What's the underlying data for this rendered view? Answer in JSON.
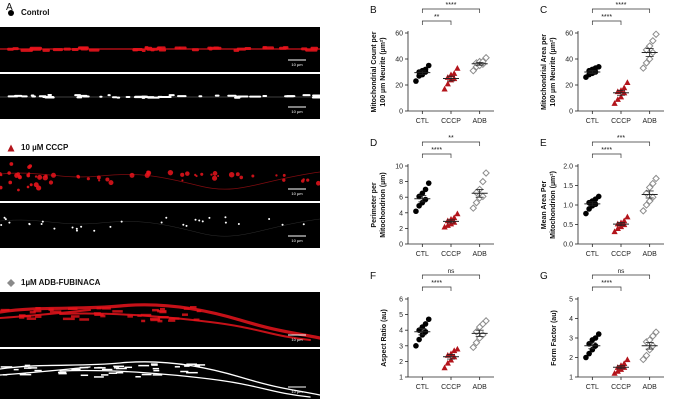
{
  "figure": {
    "panel_A_letter": "A",
    "conditions": [
      {
        "label": "Control",
        "marker": "circle",
        "color": "#000000"
      },
      {
        "label": "10 µM CCCP",
        "marker": "triangle",
        "color": "#b3141b"
      },
      {
        "label": "1µM ADB-FUBINACA",
        "marker": "diamond",
        "color": "#8a8a8a"
      }
    ],
    "scale_bar_label": "10 µm",
    "colors": {
      "control": "#000000",
      "cccp": "#b3141b",
      "adb": "#8c8c8c",
      "red_channel": "#e8141c"
    }
  },
  "chart_data": [
    {
      "panel": "B",
      "type": "scatter",
      "ylabel": "Mitochondrial Count per\n100 µm Neurite (µm²)",
      "categories": [
        "CTL",
        "CCCP",
        "ADB"
      ],
      "ylim": [
        0,
        60
      ],
      "yticks": [
        "0",
        "20",
        "40",
        "60"
      ],
      "ytick_values": [
        0,
        20,
        40,
        60
      ],
      "series": [
        {
          "values": [
            23,
            27,
            28,
            30,
            30,
            31,
            32,
            35
          ],
          "mean": 29.5,
          "sem": 1.3
        },
        {
          "values": [
            17,
            21,
            24,
            25,
            26,
            28,
            29,
            33
          ],
          "mean": 25,
          "sem": 1.8
        },
        {
          "values": [
            31,
            34,
            35,
            36,
            37,
            38,
            38,
            41
          ],
          "mean": 36.3,
          "sem": 1.1
        }
      ],
      "significance": [
        {
          "from": 0,
          "to": 1,
          "label": "**"
        },
        {
          "from": 0,
          "to": 2,
          "label": "****"
        }
      ]
    },
    {
      "panel": "C",
      "type": "scatter",
      "ylabel": "Mitochondrial Area per\n100 µm Neurite (µm²)",
      "categories": [
        "CTL",
        "CCCP",
        "ADB"
      ],
      "ylim": [
        0,
        60
      ],
      "yticks": [
        "0",
        "20",
        "40",
        "60"
      ],
      "ytick_values": [
        0,
        20,
        40,
        60
      ],
      "series": [
        {
          "values": [
            26,
            28,
            29,
            30,
            31,
            32,
            33,
            34
          ],
          "mean": 30,
          "sem": 1.1
        },
        {
          "values": [
            6,
            9,
            11,
            14,
            15,
            16,
            18,
            22
          ],
          "mean": 14,
          "sem": 1.9
        },
        {
          "values": [
            33,
            37,
            40,
            45,
            47,
            50,
            54,
            59
          ],
          "mean": 45,
          "sem": 3
        }
      ],
      "significance": [
        {
          "from": 0,
          "to": 1,
          "label": "****"
        },
        {
          "from": 0,
          "to": 2,
          "label": "****"
        }
      ]
    },
    {
      "panel": "D",
      "type": "scatter",
      "ylabel": "Perimeter per\nMitochondrion (µm)",
      "categories": [
        "CTL",
        "CCCP",
        "ADB"
      ],
      "ylim": [
        0,
        10
      ],
      "yticks": [
        "0",
        "2",
        "4",
        "6",
        "8",
        "10"
      ],
      "ytick_values": [
        0,
        2,
        4,
        6,
        8,
        10
      ],
      "series": [
        {
          "values": [
            4.2,
            4.9,
            5.3,
            5.7,
            6.1,
            6.5,
            7.0,
            7.8
          ],
          "mean": 5.8,
          "sem": 0.4
        },
        {
          "values": [
            2.2,
            2.4,
            2.6,
            2.8,
            3.0,
            3.2,
            3.4,
            3.9
          ],
          "mean": 2.9,
          "sem": 0.2
        },
        {
          "values": [
            4.6,
            5.3,
            5.9,
            6.1,
            6.6,
            7.0,
            8.0,
            9.1
          ],
          "mean": 6.5,
          "sem": 0.5
        }
      ],
      "significance": [
        {
          "from": 0,
          "to": 1,
          "label": "****"
        },
        {
          "from": 0,
          "to": 2,
          "label": "**"
        }
      ]
    },
    {
      "panel": "E",
      "type": "scatter",
      "ylabel": "Mean Area Per\nMitochondrion (µm²)",
      "categories": [
        "CTL",
        "CCCP",
        "ADB"
      ],
      "ylim": [
        0,
        2
      ],
      "yticks": [
        "0.0",
        "0.5",
        "1.0",
        "1.5",
        "2.0"
      ],
      "ytick_values": [
        0,
        0.5,
        1,
        1.5,
        2
      ],
      "series": [
        {
          "values": [
            0.78,
            0.9,
            0.98,
            1.02,
            1.06,
            1.1,
            1.15,
            1.22
          ],
          "mean": 1.03,
          "sem": 0.05
        },
        {
          "values": [
            0.32,
            0.4,
            0.45,
            0.5,
            0.52,
            0.55,
            0.6,
            0.7
          ],
          "mean": 0.51,
          "sem": 0.04
        },
        {
          "values": [
            0.85,
            1.0,
            1.1,
            1.2,
            1.3,
            1.45,
            1.55,
            1.68
          ],
          "mean": 1.27,
          "sem": 0.09
        }
      ],
      "significance": [
        {
          "from": 0,
          "to": 1,
          "label": "****"
        },
        {
          "from": 0,
          "to": 2,
          "label": "***"
        }
      ]
    },
    {
      "panel": "F",
      "type": "scatter",
      "ylabel": "Aspect Ratio (au)",
      "categories": [
        "CTL",
        "CCCP",
        "ADB"
      ],
      "ylim": [
        1,
        6
      ],
      "yticks": [
        "1",
        "2",
        "3",
        "4",
        "5",
        "6"
      ],
      "ytick_values": [
        1,
        2,
        3,
        4,
        5,
        6
      ],
      "series": [
        {
          "values": [
            3.0,
            3.4,
            3.7,
            3.9,
            4.0,
            4.2,
            4.4,
            4.7
          ],
          "mean": 3.9,
          "sem": 0.2
        },
        {
          "values": [
            1.6,
            1.9,
            2.1,
            2.3,
            2.4,
            2.5,
            2.7,
            2.8
          ],
          "mean": 2.3,
          "sem": 0.15
        },
        {
          "values": [
            2.9,
            3.2,
            3.5,
            3.7,
            3.9,
            4.2,
            4.4,
            4.6
          ],
          "mean": 3.8,
          "sem": 0.2
        }
      ],
      "significance": [
        {
          "from": 0,
          "to": 1,
          "label": "****"
        },
        {
          "from": 0,
          "to": 2,
          "label": "ns"
        }
      ]
    },
    {
      "panel": "G",
      "type": "scatter",
      "ylabel": "Form Factor (au)",
      "categories": [
        "CTL",
        "CCCP",
        "ADB"
      ],
      "ylim": [
        1,
        5
      ],
      "yticks": [
        "1",
        "2",
        "3",
        "4",
        "5"
      ],
      "ytick_values": [
        1,
        2,
        3,
        4,
        5
      ],
      "series": [
        {
          "values": [
            2.0,
            2.2,
            2.4,
            2.6,
            2.7,
            2.9,
            3.0,
            3.2
          ],
          "mean": 2.6,
          "sem": 0.15
        },
        {
          "values": [
            1.2,
            1.3,
            1.4,
            1.5,
            1.5,
            1.6,
            1.7,
            1.9
          ],
          "mean": 1.5,
          "sem": 0.08
        },
        {
          "values": [
            1.9,
            2.1,
            2.4,
            2.6,
            2.8,
            2.9,
            3.1,
            3.3
          ],
          "mean": 2.6,
          "sem": 0.17
        }
      ],
      "significance": [
        {
          "from": 0,
          "to": 1,
          "label": "****"
        },
        {
          "from": 0,
          "to": 2,
          "label": "ns"
        }
      ]
    }
  ]
}
